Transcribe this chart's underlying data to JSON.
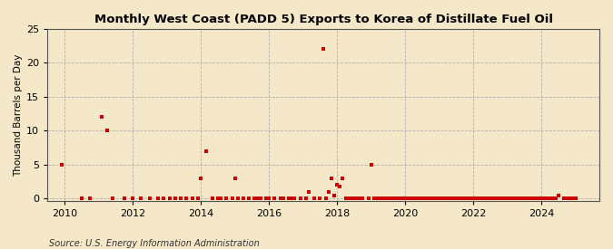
{
  "title": "Monthly West Coast (PADD 5) Exports to Korea of Distillate Fuel Oil",
  "ylabel": "Thousand Barrels per Day",
  "source": "Source: U.S. Energy Information Administration",
  "background_color": "#f5e8c8",
  "plot_bg_color": "#f5e8c8",
  "marker_color": "#cc0000",
  "xlim": [
    2009.5,
    2025.7
  ],
  "ylim": [
    -0.3,
    25
  ],
  "yticks": [
    0,
    5,
    10,
    15,
    20,
    25
  ],
  "xticks": [
    2010,
    2012,
    2014,
    2016,
    2018,
    2020,
    2022,
    2024
  ],
  "data_points": [
    [
      2009.917,
      5.0
    ],
    [
      2010.5,
      0.0
    ],
    [
      2010.75,
      0.0
    ],
    [
      2011.083,
      12.0
    ],
    [
      2011.25,
      10.0
    ],
    [
      2011.417,
      0.0
    ],
    [
      2011.75,
      0.0
    ],
    [
      2012.0,
      0.0
    ],
    [
      2012.25,
      0.0
    ],
    [
      2012.5,
      0.0
    ],
    [
      2012.75,
      0.0
    ],
    [
      2012.917,
      0.0
    ],
    [
      2013.083,
      0.0
    ],
    [
      2013.25,
      0.0
    ],
    [
      2013.417,
      0.0
    ],
    [
      2013.583,
      0.0
    ],
    [
      2013.75,
      0.0
    ],
    [
      2013.917,
      0.0
    ],
    [
      2014.0,
      3.0
    ],
    [
      2014.167,
      7.0
    ],
    [
      2014.333,
      0.0
    ],
    [
      2014.5,
      0.0
    ],
    [
      2014.583,
      0.0
    ],
    [
      2014.75,
      0.0
    ],
    [
      2014.917,
      0.0
    ],
    [
      2015.0,
      3.0
    ],
    [
      2015.083,
      0.0
    ],
    [
      2015.25,
      0.0
    ],
    [
      2015.417,
      0.0
    ],
    [
      2015.583,
      0.0
    ],
    [
      2015.667,
      0.0
    ],
    [
      2015.75,
      0.0
    ],
    [
      2015.917,
      0.0
    ],
    [
      2016.0,
      0.0
    ],
    [
      2016.167,
      0.0
    ],
    [
      2016.333,
      0.0
    ],
    [
      2016.417,
      0.0
    ],
    [
      2016.583,
      0.0
    ],
    [
      2016.667,
      0.0
    ],
    [
      2016.75,
      0.0
    ],
    [
      2016.917,
      0.0
    ],
    [
      2017.083,
      0.0
    ],
    [
      2017.167,
      1.0
    ],
    [
      2017.333,
      0.0
    ],
    [
      2017.5,
      0.0
    ],
    [
      2017.583,
      22.0
    ],
    [
      2017.667,
      0.0
    ],
    [
      2017.75,
      1.0
    ],
    [
      2017.833,
      3.0
    ],
    [
      2017.917,
      0.5
    ],
    [
      2018.0,
      2.0
    ],
    [
      2018.083,
      1.8
    ],
    [
      2018.167,
      3.0
    ],
    [
      2018.25,
      0.0
    ],
    [
      2018.333,
      0.0
    ],
    [
      2018.417,
      0.0
    ],
    [
      2018.5,
      0.0
    ],
    [
      2018.583,
      0.0
    ],
    [
      2018.667,
      0.0
    ],
    [
      2018.75,
      0.0
    ],
    [
      2018.917,
      0.0
    ],
    [
      2019.0,
      5.0
    ],
    [
      2019.083,
      0.0
    ],
    [
      2019.167,
      0.0
    ],
    [
      2019.25,
      0.0
    ],
    [
      2019.333,
      0.0
    ],
    [
      2019.417,
      0.0
    ],
    [
      2019.5,
      0.0
    ],
    [
      2019.583,
      0.0
    ],
    [
      2019.667,
      0.0
    ],
    [
      2019.75,
      0.0
    ],
    [
      2019.833,
      0.0
    ],
    [
      2019.917,
      0.0
    ],
    [
      2020.0,
      0.0
    ],
    [
      2020.083,
      0.0
    ],
    [
      2020.167,
      0.0
    ],
    [
      2020.25,
      0.0
    ],
    [
      2020.333,
      0.0
    ],
    [
      2020.417,
      0.0
    ],
    [
      2020.5,
      0.0
    ],
    [
      2020.583,
      0.0
    ],
    [
      2020.667,
      0.0
    ],
    [
      2020.75,
      0.0
    ],
    [
      2020.833,
      0.0
    ],
    [
      2020.917,
      0.0
    ],
    [
      2021.0,
      0.0
    ],
    [
      2021.083,
      0.0
    ],
    [
      2021.167,
      0.0
    ],
    [
      2021.25,
      0.0
    ],
    [
      2021.333,
      0.0
    ],
    [
      2021.417,
      0.0
    ],
    [
      2021.5,
      0.0
    ],
    [
      2021.583,
      0.0
    ],
    [
      2021.667,
      0.0
    ],
    [
      2021.75,
      0.0
    ],
    [
      2021.833,
      0.0
    ],
    [
      2021.917,
      0.0
    ],
    [
      2022.0,
      0.0
    ],
    [
      2022.083,
      0.0
    ],
    [
      2022.167,
      0.0
    ],
    [
      2022.25,
      0.0
    ],
    [
      2022.333,
      0.0
    ],
    [
      2022.417,
      0.0
    ],
    [
      2022.5,
      0.0
    ],
    [
      2022.583,
      0.0
    ],
    [
      2022.667,
      0.0
    ],
    [
      2022.75,
      0.0
    ],
    [
      2022.833,
      0.0
    ],
    [
      2022.917,
      0.0
    ],
    [
      2023.0,
      0.0
    ],
    [
      2023.083,
      0.0
    ],
    [
      2023.167,
      0.0
    ],
    [
      2023.25,
      0.0
    ],
    [
      2023.333,
      0.0
    ],
    [
      2023.417,
      0.0
    ],
    [
      2023.5,
      0.0
    ],
    [
      2023.583,
      0.0
    ],
    [
      2023.667,
      0.0
    ],
    [
      2023.75,
      0.0
    ],
    [
      2023.833,
      0.0
    ],
    [
      2023.917,
      0.0
    ],
    [
      2024.0,
      0.0
    ],
    [
      2024.083,
      0.0
    ],
    [
      2024.167,
      0.0
    ],
    [
      2024.25,
      0.0
    ],
    [
      2024.333,
      0.0
    ],
    [
      2024.417,
      0.0
    ],
    [
      2024.5,
      0.5
    ],
    [
      2024.667,
      0.0
    ],
    [
      2024.75,
      0.0
    ],
    [
      2024.833,
      0.0
    ],
    [
      2024.917,
      0.0
    ],
    [
      2025.0,
      0.0
    ]
  ]
}
